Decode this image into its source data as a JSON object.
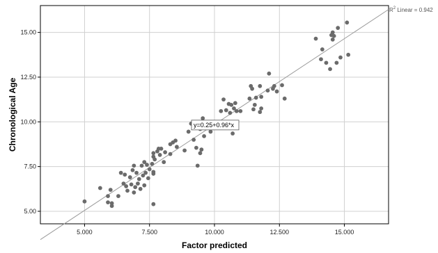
{
  "chart_data": {
    "type": "scatter",
    "xlabel": "Factor predicted",
    "ylabel": "Chronological Age",
    "xlim": [
      3.3,
      16.7
    ],
    "ylim": [
      4.3,
      16.5
    ],
    "x_ticks": [
      5.0,
      7.5,
      10.0,
      12.5,
      15.0
    ],
    "x_tick_labels": [
      "5.000",
      "7.500",
      "10.000",
      "12.500",
      "15.000"
    ],
    "y_ticks": [
      5.0,
      7.5,
      10.0,
      12.5,
      15.0
    ],
    "y_tick_labels": [
      "5.00",
      "7.50",
      "10.00",
      "12.50",
      "15.00"
    ],
    "grid": true,
    "point_color": "#6b6b6b",
    "fit_line_color": "#9a9a9a",
    "fit_line": {
      "intercept": 0.25,
      "slope": 0.96
    },
    "fit_equation_label": "y=0.25+0.96*x",
    "fit_equation_anchor": [
      10.0,
      9.9
    ],
    "r2_label_prefix": "R",
    "r2_label_sup": "2",
    "r2_label_rest": " Linear = 0.942",
    "points": [
      [
        5.0,
        5.55
      ],
      [
        5.6,
        6.3
      ],
      [
        5.9,
        5.85
      ],
      [
        5.9,
        5.5
      ],
      [
        6.0,
        6.2
      ],
      [
        6.05,
        5.3
      ],
      [
        6.05,
        5.45
      ],
      [
        6.3,
        5.85
      ],
      [
        6.4,
        7.15
      ],
      [
        6.5,
        6.55
      ],
      [
        6.55,
        7.05
      ],
      [
        6.6,
        6.4
      ],
      [
        6.65,
        6.15
      ],
      [
        6.75,
        6.9
      ],
      [
        6.8,
        6.5
      ],
      [
        6.85,
        7.3
      ],
      [
        6.9,
        7.55
      ],
      [
        6.9,
        6.05
      ],
      [
        6.95,
        6.35
      ],
      [
        7.0,
        7.15
      ],
      [
        7.05,
        6.55
      ],
      [
        7.1,
        6.8
      ],
      [
        7.15,
        6.25
      ],
      [
        7.2,
        7.55
      ],
      [
        7.25,
        7.0
      ],
      [
        7.3,
        7.75
      ],
      [
        7.3,
        6.45
      ],
      [
        7.35,
        7.15
      ],
      [
        7.4,
        7.6
      ],
      [
        7.45,
        6.85
      ],
      [
        7.5,
        7.35
      ],
      [
        7.6,
        7.65
      ],
      [
        7.65,
        8.05
      ],
      [
        7.65,
        7.2
      ],
      [
        7.65,
        7.1
      ],
      [
        7.65,
        5.4
      ],
      [
        7.65,
        8.25
      ],
      [
        7.7,
        7.9
      ],
      [
        7.8,
        8.35
      ],
      [
        7.85,
        8.5
      ],
      [
        7.9,
        8.15
      ],
      [
        7.95,
        8.5
      ],
      [
        8.05,
        7.75
      ],
      [
        8.1,
        8.3
      ],
      [
        8.3,
        8.2
      ],
      [
        8.3,
        8.75
      ],
      [
        8.4,
        8.85
      ],
      [
        8.5,
        8.95
      ],
      [
        8.55,
        8.6
      ],
      [
        8.85,
        8.4
      ],
      [
        9.0,
        9.45
      ],
      [
        9.1,
        9.9
      ],
      [
        9.2,
        9.0
      ],
      [
        9.3,
        8.55
      ],
      [
        9.35,
        7.55
      ],
      [
        9.45,
        8.25
      ],
      [
        9.45,
        9.6
      ],
      [
        9.5,
        8.45
      ],
      [
        9.55,
        10.2
      ],
      [
        9.6,
        9.2
      ],
      [
        9.65,
        9.65
      ],
      [
        9.85,
        9.45
      ],
      [
        10.25,
        10.6
      ],
      [
        10.35,
        11.25
      ],
      [
        10.45,
        10.65
      ],
      [
        10.55,
        11.0
      ],
      [
        10.6,
        10.5
      ],
      [
        10.65,
        10.95
      ],
      [
        10.7,
        9.35
      ],
      [
        10.75,
        10.75
      ],
      [
        10.8,
        11.05
      ],
      [
        10.85,
        10.6
      ],
      [
        11.0,
        10.6
      ],
      [
        11.35,
        11.3
      ],
      [
        11.4,
        12.0
      ],
      [
        11.45,
        11.85
      ],
      [
        11.5,
        10.7
      ],
      [
        11.55,
        10.95
      ],
      [
        11.6,
        11.35
      ],
      [
        11.75,
        12.0
      ],
      [
        11.75,
        10.55
      ],
      [
        11.8,
        10.75
      ],
      [
        11.8,
        11.4
      ],
      [
        12.05,
        11.75
      ],
      [
        12.1,
        12.7
      ],
      [
        12.25,
        11.85
      ],
      [
        12.3,
        12.0
      ],
      [
        12.4,
        11.7
      ],
      [
        12.6,
        12.05
      ],
      [
        12.7,
        11.3
      ],
      [
        13.9,
        14.65
      ],
      [
        14.1,
        13.5
      ],
      [
        14.15,
        14.05
      ],
      [
        14.3,
        13.3
      ],
      [
        14.45,
        12.95
      ],
      [
        14.5,
        14.85
      ],
      [
        14.55,
        15.0
      ],
      [
        14.55,
        14.6
      ],
      [
        14.6,
        14.8
      ],
      [
        14.7,
        13.3
      ],
      [
        14.75,
        15.25
      ],
      [
        14.85,
        13.6
      ],
      [
        15.1,
        15.55
      ],
      [
        15.15,
        13.75
      ]
    ]
  }
}
